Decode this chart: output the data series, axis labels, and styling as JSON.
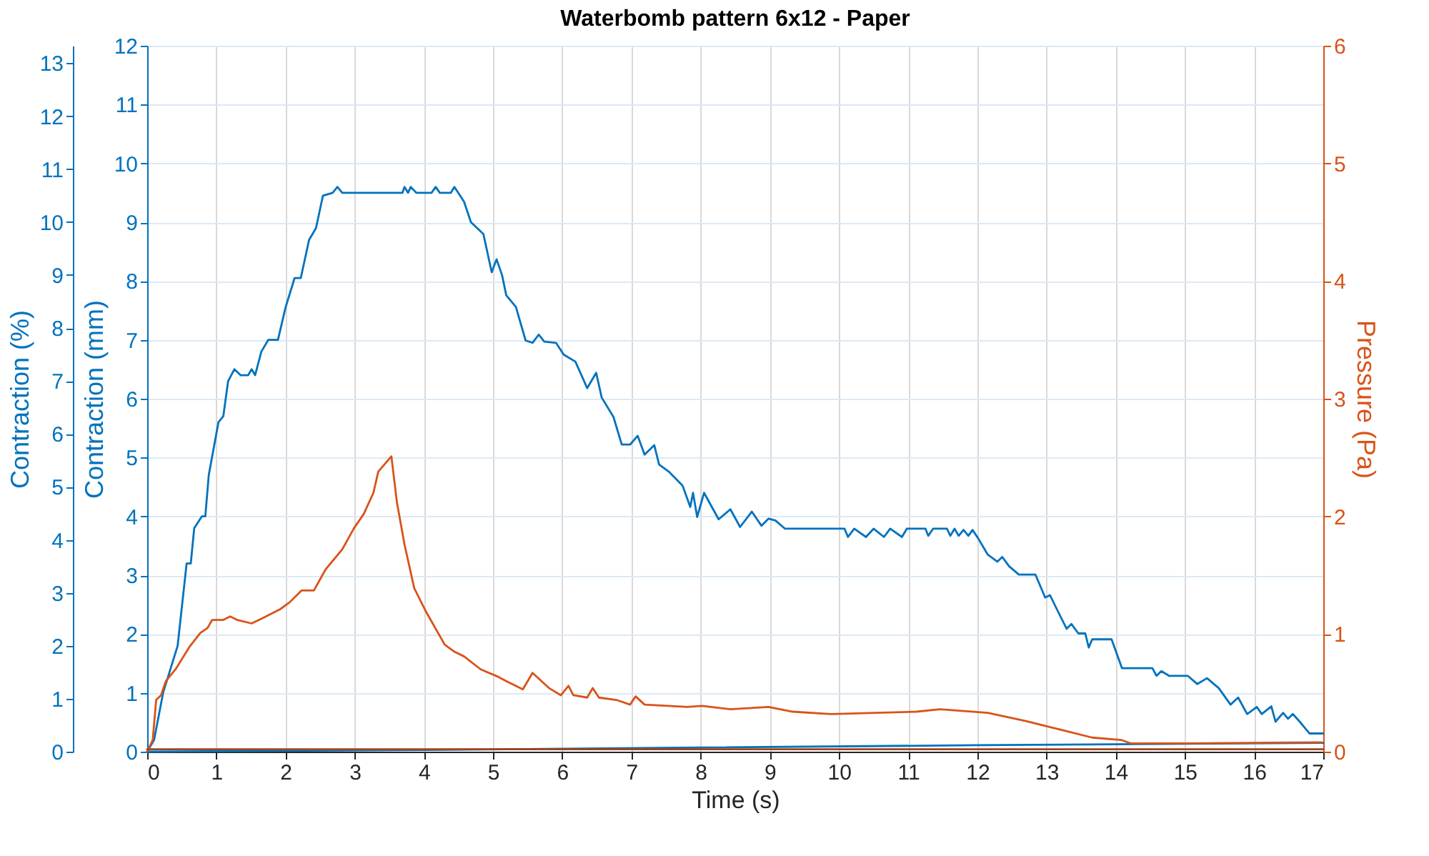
{
  "chart_data": {
    "type": "line",
    "title": "Waterbomb pattern 6x12 - Paper",
    "xlabel": "Time (s)",
    "ylabel": "Contraction (mm)",
    "y2label": "Pressure (Pa)",
    "y3label": "Contraction (%)",
    "xlim": [
      0,
      17
    ],
    "xticks": [
      0,
      1,
      2,
      3,
      4,
      5,
      6,
      7,
      8,
      9,
      10,
      11,
      12,
      13,
      14,
      15,
      16,
      17
    ],
    "ylim": [
      0,
      12
    ],
    "yticks": [
      0,
      1,
      2,
      3,
      4,
      5,
      6,
      7,
      8,
      9,
      10,
      11,
      12
    ],
    "y2lim": [
      0,
      6
    ],
    "y2ticks": [
      0,
      1,
      2,
      3,
      4,
      5,
      6
    ],
    "y3lim": [
      0,
      13.33
    ],
    "y3ticks": [
      0,
      1,
      2,
      3,
      4,
      5,
      6,
      7,
      8,
      9,
      10,
      11,
      12,
      13
    ],
    "grid": true,
    "series": [
      {
        "color": "#0072bd",
        "axis": "y",
        "x": [
          0,
          0.1,
          0.23,
          0.44,
          0.57,
          0.63,
          0.68,
          0.79,
          0.84,
          0.89,
          1.03,
          1.1,
          1.17,
          1.26,
          1.35,
          1.46,
          1.51,
          1.56,
          1.65,
          1.75,
          1.89,
          2.0,
          2.13,
          2.22,
          2.34,
          2.44,
          2.54,
          2.68,
          2.75,
          2.82,
          3.69,
          3.72,
          3.77,
          3.81,
          3.89,
          4.11,
          4.17,
          4.23,
          4.39,
          4.44,
          4.58,
          4.68,
          4.86,
          4.98,
          5.05,
          5.13,
          5.19,
          5.33,
          5.47,
          5.57,
          5.66,
          5.74,
          5.91,
          6.02,
          6.19,
          6.36,
          6.49,
          6.57,
          6.74,
          6.86,
          6.98,
          7.09,
          7.19,
          7.33,
          7.4,
          7.54,
          7.74,
          7.85,
          7.89,
          7.95,
          8.05,
          8.26,
          8.43,
          8.57,
          8.74,
          8.88,
          8.98,
          9.08,
          9.22,
          10.08,
          10.13,
          10.22,
          10.39,
          10.5,
          10.65,
          10.74,
          10.91,
          10.98,
          11.25,
          11.29,
          11.36,
          11.56,
          11.61,
          11.67,
          11.73,
          11.8,
          11.87,
          11.93,
          12.01,
          12.15,
          12.29,
          12.36,
          12.46,
          12.6,
          12.84,
          12.98,
          13.05,
          13.15,
          13.29,
          13.36,
          13.46,
          13.56,
          13.61,
          13.66,
          13.94,
          14.09,
          14.53,
          14.59,
          14.66,
          14.77,
          15.04,
          15.18,
          15.32,
          15.49,
          15.66,
          15.77,
          15.9,
          16.04,
          16.11,
          16.25,
          16.31,
          16.42,
          16.49,
          16.56,
          16.66,
          16.8,
          17
        ],
        "values": [
          0,
          0.2,
          1.0,
          1.8,
          3.2,
          3.2,
          3.8,
          4.0,
          4.0,
          4.7,
          5.6,
          5.7,
          6.3,
          6.5,
          6.4,
          6.4,
          6.5,
          6.4,
          6.8,
          7.0,
          7.0,
          7.55,
          8.05,
          8.05,
          8.7,
          8.9,
          9.45,
          9.5,
          9.6,
          9.5,
          9.5,
          9.6,
          9.5,
          9.6,
          9.5,
          9.5,
          9.6,
          9.5,
          9.5,
          9.6,
          9.35,
          9.0,
          8.8,
          8.15,
          8.37,
          8.1,
          7.76,
          7.56,
          6.99,
          6.95,
          7.09,
          6.97,
          6.95,
          6.75,
          6.63,
          6.18,
          6.44,
          6.02,
          5.69,
          5.22,
          5.22,
          5.37,
          5.05,
          5.21,
          4.88,
          4.76,
          4.52,
          4.16,
          4.4,
          3.99,
          4.4,
          3.95,
          4.12,
          3.82,
          4.08,
          3.84,
          3.96,
          3.93,
          3.79,
          3.79,
          3.65,
          3.79,
          3.65,
          3.79,
          3.65,
          3.79,
          3.65,
          3.79,
          3.79,
          3.67,
          3.79,
          3.79,
          3.67,
          3.79,
          3.67,
          3.77,
          3.67,
          3.77,
          3.63,
          3.35,
          3.23,
          3.31,
          3.15,
          3.01,
          3.01,
          2.62,
          2.66,
          2.42,
          2.09,
          2.17,
          2.01,
          2.01,
          1.77,
          1.91,
          1.91,
          1.42,
          1.42,
          1.29,
          1.37,
          1.29,
          1.29,
          1.15,
          1.25,
          1.08,
          0.8,
          0.92,
          0.64,
          0.76,
          0.64,
          0.77,
          0.51,
          0.66,
          0.56,
          0.64,
          0.51,
          0.31,
          0.31
        ]
      },
      {
        "color": "#0072bd",
        "axis": "y",
        "x": [
          0,
          4,
          8,
          12,
          17
        ],
        "values": [
          0,
          0.03,
          0.07,
          0.11,
          0.15
        ]
      },
      {
        "color": "#d95319",
        "axis": "y2",
        "x": [
          0,
          0.08,
          0.13,
          0.2,
          0.27,
          0.41,
          0.61,
          0.77,
          0.87,
          0.94,
          1.1,
          1.2,
          1.3,
          1.51,
          1.65,
          1.92,
          2.06,
          2.23,
          2.41,
          2.58,
          2.82,
          2.99,
          3.13,
          3.27,
          3.34,
          3.53,
          3.61,
          3.72,
          3.86,
          4.03,
          4.3,
          4.44,
          4.58,
          4.82,
          5.06,
          5.19,
          5.43,
          5.57,
          5.81,
          5.98,
          6.09,
          6.16,
          6.36,
          6.44,
          6.53,
          6.78,
          6.98,
          7.06,
          7.19,
          7.81,
          8.02,
          8.43,
          8.98,
          9.33,
          9.88,
          11.12,
          11.46,
          12.15,
          12.7,
          13.18,
          13.66,
          14.08,
          14.22,
          15.04,
          16.97
        ],
        "values": [
          0,
          0.1,
          0.44,
          0.48,
          0.6,
          0.7,
          0.89,
          1.01,
          1.05,
          1.12,
          1.12,
          1.15,
          1.12,
          1.09,
          1.13,
          1.21,
          1.27,
          1.37,
          1.37,
          1.55,
          1.72,
          1.9,
          2.02,
          2.2,
          2.38,
          2.51,
          2.12,
          1.76,
          1.39,
          1.19,
          0.91,
          0.85,
          0.81,
          0.7,
          0.64,
          0.6,
          0.53,
          0.67,
          0.54,
          0.48,
          0.56,
          0.48,
          0.46,
          0.54,
          0.46,
          0.44,
          0.4,
          0.47,
          0.4,
          0.38,
          0.39,
          0.36,
          0.38,
          0.34,
          0.32,
          0.34,
          0.36,
          0.33,
          0.26,
          0.19,
          0.12,
          0.1,
          0.07,
          0.07,
          0.08
        ]
      },
      {
        "color": "#a2431e",
        "axis": "y2",
        "x": [
          0,
          17
        ],
        "values": [
          0.02,
          0.02
        ]
      }
    ]
  }
}
